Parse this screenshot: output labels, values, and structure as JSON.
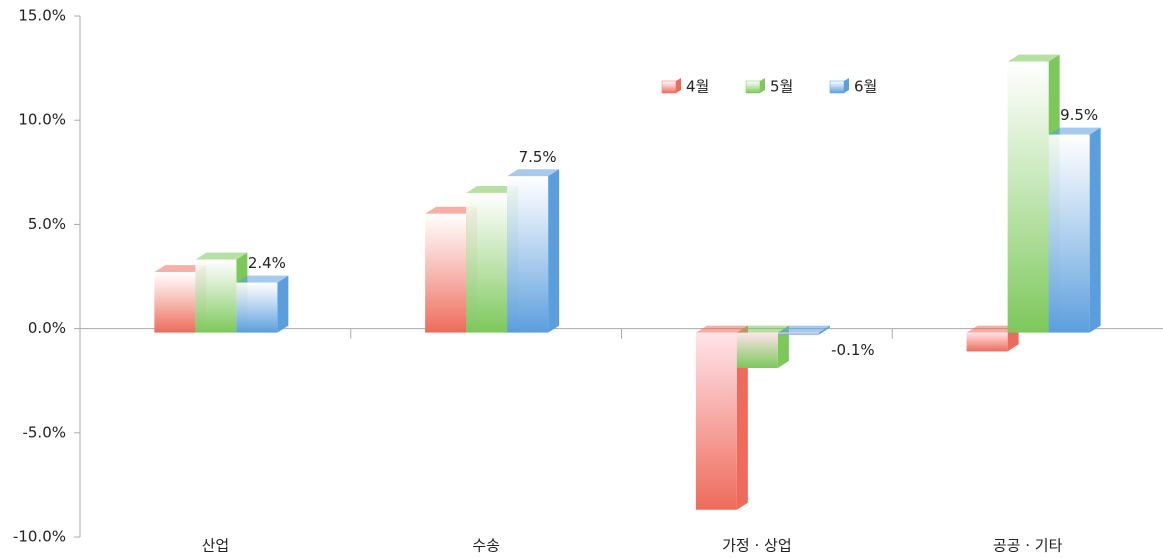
{
  "chart_data": {
    "type": "bar",
    "categories": [
      "산업",
      "수송",
      "가정 · 상업",
      "공공 · 기타"
    ],
    "series": [
      {
        "name": "4월",
        "color": "#ee6b5b",
        "values": [
          2.9,
          5.7,
          -8.5,
          -0.9
        ]
      },
      {
        "name": "5월",
        "color": "#7cc85a",
        "values": [
          3.5,
          6.7,
          -1.7,
          13.0
        ]
      },
      {
        "name": "6월",
        "color": "#5b9ede",
        "values": [
          2.4,
          7.5,
          -0.1,
          9.5
        ],
        "value_labels": [
          "2.4%",
          "7.5%",
          "-0.1%",
          "9.5%"
        ]
      }
    ],
    "ylim": [
      -10,
      15
    ],
    "yticks": [
      {
        "value": -10,
        "label": "-10.0%"
      },
      {
        "value": -5,
        "label": "-5.0%"
      },
      {
        "value": 0,
        "label": "0.0%"
      },
      {
        "value": 5,
        "label": "5.0%"
      },
      {
        "value": 10,
        "label": "10.0%"
      },
      {
        "value": 15,
        "label": "15.0%"
      }
    ],
    "legend": "top-right"
  }
}
